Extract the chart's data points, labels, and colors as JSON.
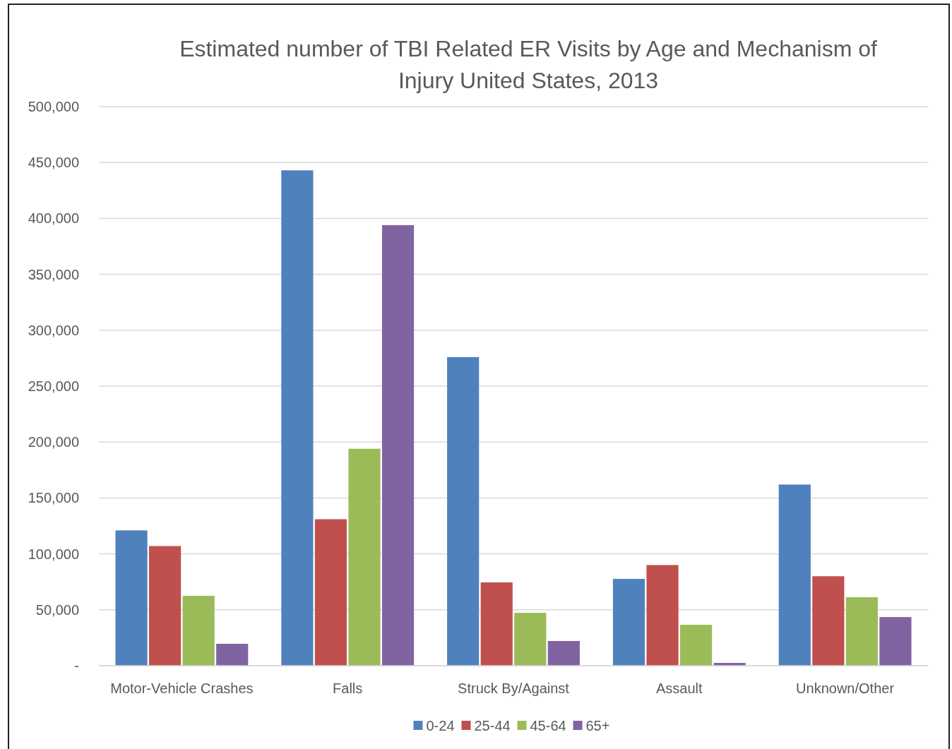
{
  "chart_data": {
    "type": "bar",
    "title": "Estimated number of TBI Related ER Visits by Age and Mechanism of Injury United States, 2013",
    "categories": [
      "Motor-Vehicle Crashes",
      "Falls",
      "Struck By/Against",
      "Assault",
      "Unknown/Other"
    ],
    "series": [
      {
        "name": "0-24",
        "color": "#4f81bd",
        "values": [
          121000,
          443000,
          276000,
          77600,
          162000
        ]
      },
      {
        "name": "25-44",
        "color": "#c0504d",
        "values": [
          107000,
          131000,
          74500,
          90000,
          80000
        ]
      },
      {
        "name": "45-64",
        "color": "#9bbb59",
        "values": [
          62500,
          194000,
          47300,
          36600,
          61200
        ]
      },
      {
        "name": "65+",
        "color": "#8064a2",
        "values": [
          19600,
          394000,
          22100,
          2500,
          43500
        ]
      }
    ],
    "ylim": [
      0,
      500000
    ],
    "yticks": [
      {
        "value": 0,
        "label": "-"
      },
      {
        "value": 50000,
        "label": "50,000"
      },
      {
        "value": 100000,
        "label": "100,000"
      },
      {
        "value": 150000,
        "label": "150,000"
      },
      {
        "value": 200000,
        "label": "200,000"
      },
      {
        "value": 250000,
        "label": "250,000"
      },
      {
        "value": 300000,
        "label": "300,000"
      },
      {
        "value": 350000,
        "label": "350,000"
      },
      {
        "value": 400000,
        "label": "400,000"
      },
      {
        "value": 450000,
        "label": "450,000"
      },
      {
        "value": 500000,
        "label": "500,000"
      }
    ],
    "grid": "y",
    "legend": "bottom"
  }
}
